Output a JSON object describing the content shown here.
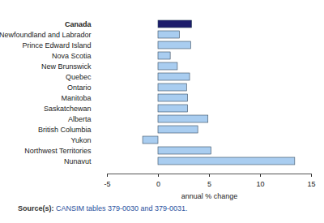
{
  "chart_data": {
    "type": "bar",
    "orientation": "horizontal",
    "categories": [
      "Canada",
      "Newfoundland and Labrador",
      "Prince Edward Island",
      "Nova Scotia",
      "New Brunswick",
      "Quebec",
      "Ontario",
      "Manitoba",
      "Saskatchewan",
      "Alberta",
      "British Columbia",
      "Yukon",
      "Northwest Territories",
      "Nunavut"
    ],
    "values": [
      3.3,
      2.1,
      3.2,
      1.2,
      1.9,
      3.1,
      2.8,
      2.9,
      2.9,
      4.9,
      3.9,
      -1.5,
      5.2,
      13.4
    ],
    "colors": [
      "#1c1c6b",
      "#a9cdf0",
      "#a9cdf0",
      "#a9cdf0",
      "#a9cdf0",
      "#a9cdf0",
      "#a9cdf0",
      "#a9cdf0",
      "#a9cdf0",
      "#a9cdf0",
      "#a9cdf0",
      "#a9cdf0",
      "#a9cdf0",
      "#a9cdf0"
    ],
    "xlabel": "annual % change",
    "xlim": [
      -5,
      15
    ],
    "xticks": [
      -5,
      0,
      5,
      10,
      15
    ],
    "grid": false,
    "caption": "Source(s): CANSIM tables 379-0030 and 379-0031."
  }
}
